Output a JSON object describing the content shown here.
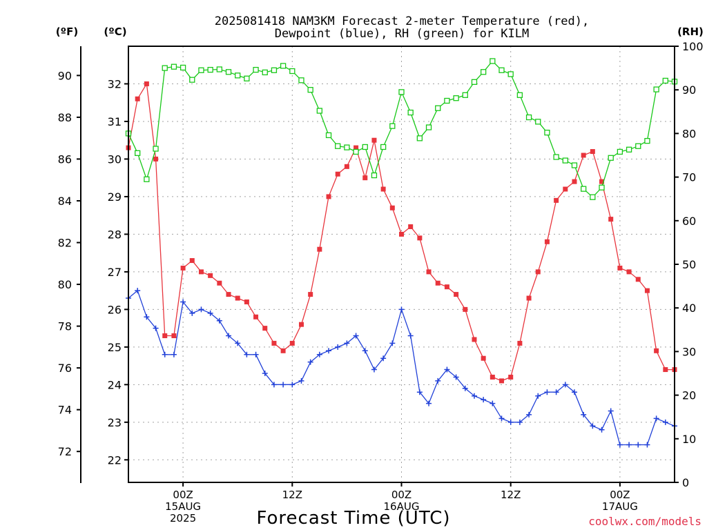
{
  "title_line1": "2025081418 NAM3KM Forecast 2-meter Temperature (red),",
  "title_line2": "Dewpoint (blue), RH (green) for KILM",
  "unit_f": "(ºF)",
  "unit_c": "(ºC)",
  "unit_rh": "(RH)",
  "xlabel": "Forecast Time (UTC)",
  "credit": "coolwx.com/models",
  "colors": {
    "temperature": "#e8343c",
    "dewpoint": "#2040d8",
    "rh": "#18c818"
  },
  "chart_data": {
    "type": "line",
    "title": "2025081418 NAM3KM Forecast 2-meter Temperature (red), Dewpoint (blue), RH (green) for KILM",
    "xlabel": "Forecast Time (UTC)",
    "x_start": "2025-08-14 18Z",
    "x_step_hours": 1,
    "xlim_hours": [
      0,
      60
    ],
    "x_ticks": [
      {
        "hour": 6,
        "lines": [
          "00Z",
          "15AUG",
          "2025"
        ]
      },
      {
        "hour": 18,
        "lines": [
          "12Z"
        ]
      },
      {
        "hour": 30,
        "lines": [
          "00Z",
          "16AUG"
        ]
      },
      {
        "hour": 42,
        "lines": [
          "12Z"
        ]
      },
      {
        "hour": 54,
        "lines": [
          "00Z",
          "17AUG"
        ]
      }
    ],
    "y_left_f": {
      "label": "(ºF)",
      "ticks": [
        72,
        74,
        76,
        78,
        80,
        82,
        84,
        86,
        88,
        90
      ]
    },
    "y_left_c": {
      "label": "(ºC)",
      "range": [
        21.4,
        33.0
      ],
      "ticks": [
        22,
        23,
        24,
        25,
        26,
        27,
        28,
        29,
        30,
        31,
        32
      ]
    },
    "y_right_rh": {
      "label": "(RH)",
      "range": [
        0,
        100
      ],
      "ticks": [
        0,
        10,
        20,
        30,
        40,
        50,
        60,
        70,
        80,
        90,
        100
      ]
    },
    "grid": true,
    "series": [
      {
        "name": "Temperature",
        "axis": "c",
        "marker": "filled-square",
        "values": [
          30.3,
          31.6,
          32.0,
          30.0,
          25.3,
          25.3,
          27.1,
          27.3,
          27.0,
          26.9,
          26.7,
          26.4,
          26.3,
          26.2,
          25.8,
          25.5,
          25.1,
          24.9,
          25.1,
          25.6,
          26.4,
          27.6,
          29.0,
          29.6,
          29.8,
          30.3,
          29.5,
          30.5,
          29.2,
          28.7,
          28.0,
          28.2,
          27.9,
          27.0,
          26.7,
          26.6,
          26.4,
          26.0,
          25.2,
          24.7,
          24.2,
          24.1,
          24.2,
          25.1,
          26.3,
          27.0,
          27.8,
          28.9,
          29.2,
          29.4,
          30.1,
          30.2,
          29.4,
          28.4,
          27.1,
          27.0,
          26.8,
          26.5,
          24.9,
          24.4,
          24.4
        ]
      },
      {
        "name": "Dewpoint",
        "axis": "c",
        "marker": "plus",
        "values": [
          26.3,
          26.5,
          25.8,
          25.5,
          24.8,
          24.8,
          26.2,
          25.9,
          26.0,
          25.9,
          25.7,
          25.3,
          25.1,
          24.8,
          24.8,
          24.3,
          24.0,
          24.0,
          24.0,
          24.1,
          24.6,
          24.8,
          24.9,
          25.0,
          25.1,
          25.3,
          24.9,
          24.4,
          24.7,
          25.1,
          26.0,
          25.3,
          23.8,
          23.5,
          24.1,
          24.4,
          24.2,
          23.9,
          23.7,
          23.6,
          23.5,
          23.1,
          23.0,
          23.0,
          23.2,
          23.7,
          23.8,
          23.8,
          24.0,
          23.8,
          23.2,
          22.9,
          22.8,
          23.3,
          22.4,
          22.4,
          22.4,
          22.4,
          23.1,
          23.0,
          22.9
        ]
      },
      {
        "name": "RH",
        "axis": "rh",
        "marker": "open-square",
        "values": [
          80,
          75.5,
          69.5,
          76.5,
          95,
          95.3,
          95.1,
          92.3,
          94.5,
          94.6,
          94.7,
          94.1,
          93.3,
          92.6,
          94.6,
          94.0,
          94.5,
          95.5,
          94.3,
          92.2,
          90.0,
          85.2,
          79.6,
          77.1,
          76.8,
          75.8,
          76.9,
          70.4,
          76.9,
          81.7,
          89.5,
          84.8,
          78.9,
          81.4,
          85.8,
          87.5,
          88.1,
          88.8,
          91.8,
          94.1,
          96.6,
          94.5,
          93.6,
          88.8,
          83.7,
          82.7,
          80.2,
          74.6,
          73.8,
          72.7,
          67.3,
          65.4,
          67.6,
          74.4,
          75.8,
          76.3,
          77.1,
          78.3,
          90.1,
          92.1,
          91.9
        ]
      }
    ]
  }
}
